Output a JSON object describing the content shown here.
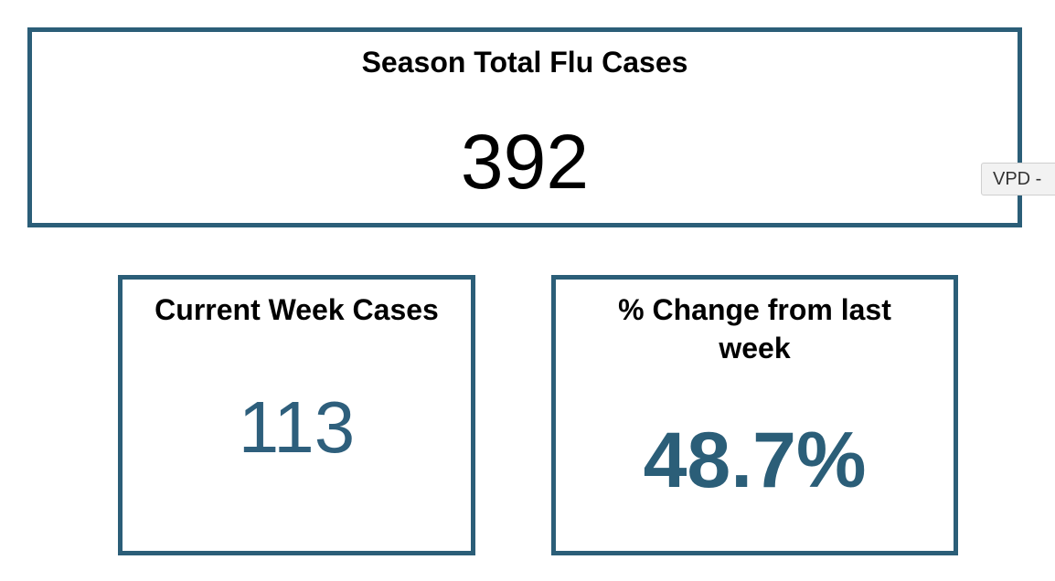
{
  "cards": [
    {
      "title": "Season Total Flu Cases",
      "value": "392"
    },
    {
      "title": "Current Week Cases",
      "value": "113"
    },
    {
      "title": "% Change from last week",
      "value": "48.7%"
    }
  ],
  "tab": {
    "label": "VPD -"
  }
}
